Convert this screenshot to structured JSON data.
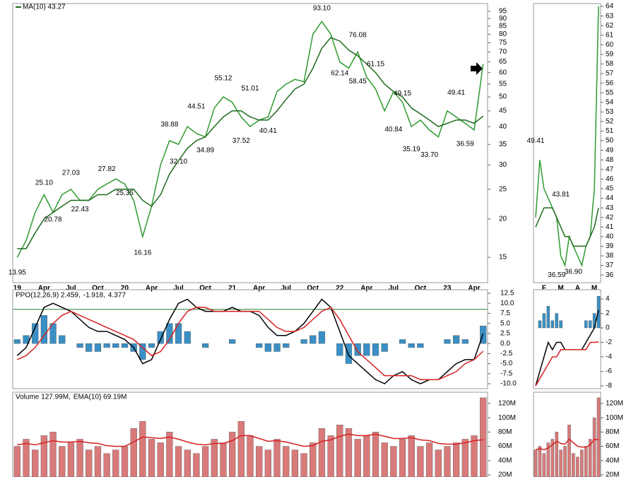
{
  "chart_data": [
    {
      "type": "line",
      "log_scale": true,
      "grid": false,
      "categories": [
        "19",
        null,
        null,
        "Apr",
        null,
        null,
        "Jul",
        null,
        null,
        "Oct",
        null,
        null,
        "20",
        null,
        null,
        "Apr",
        null,
        null,
        "Jul",
        null,
        null,
        "Oct",
        null,
        null,
        "21",
        null,
        null,
        "Apr",
        null,
        null,
        "Jul",
        null,
        null,
        "Oct",
        null,
        null,
        "22",
        null,
        null,
        "Apr",
        null,
        null,
        "Jul",
        null,
        null,
        "Oct",
        null,
        null,
        "23",
        null,
        null,
        "Apr",
        null
      ],
      "series": [
        {
          "color": "#2f9a2f",
          "values": [
            15,
            17,
            21,
            24,
            21,
            24,
            25,
            23,
            23,
            25,
            26,
            27,
            26,
            23,
            17.5,
            22,
            30,
            36,
            35,
            40,
            38,
            37,
            46,
            50,
            48,
            43,
            40,
            42,
            43,
            52,
            55,
            57,
            56,
            80,
            88,
            80,
            65,
            62,
            70,
            58,
            53,
            45,
            52,
            48,
            40,
            42,
            39,
            37,
            45,
            43,
            41,
            39,
            64
          ]
        },
        {
          "name": "MA(10) 43.27",
          "color": "#1e6b1e",
          "values": [
            16,
            16,
            18,
            20,
            21,
            22,
            23,
            23,
            23,
            24,
            24,
            25,
            25,
            25,
            23,
            22,
            24,
            28,
            31,
            34,
            36,
            37,
            40,
            43,
            45,
            45,
            43,
            42,
            42,
            45,
            49,
            53,
            55,
            62,
            72,
            78,
            76,
            71,
            68,
            64,
            60,
            55,
            52,
            50,
            46,
            44,
            42,
            40,
            41,
            42,
            42,
            41,
            43.27
          ]
        }
      ],
      "annotations": [
        {
          "x": 0,
          "value": 13.95
        },
        {
          "x": 3,
          "value": 25.1,
          "label": "25.10"
        },
        {
          "x": 4,
          "value": 20.78
        },
        {
          "x": 6,
          "value": 27.03
        },
        {
          "x": 7,
          "value": 22.43
        },
        {
          "x": 10,
          "value": 27.82
        },
        {
          "x": 12,
          "value": 25.35
        },
        {
          "x": 14,
          "value": 16.16
        },
        {
          "x": 17,
          "value": 38.88
        },
        {
          "x": 18,
          "value": 32.1,
          "label": "32.10"
        },
        {
          "x": 20,
          "value": 44.51
        },
        {
          "x": 21,
          "value": 34.89
        },
        {
          "x": 23,
          "value": 55.12
        },
        {
          "x": 25,
          "value": 37.52
        },
        {
          "x": 26,
          "value": 51.01
        },
        {
          "x": 28,
          "value": 40.41
        },
        {
          "x": 34,
          "value": 93.1,
          "label": "93.10"
        },
        {
          "x": 36,
          "value": 62.14
        },
        {
          "x": 38,
          "value": 76.08
        },
        {
          "x": 38,
          "value": 58.45
        },
        {
          "x": 40,
          "value": 61.15
        },
        {
          "x": 42,
          "value": 40.84
        },
        {
          "x": 43,
          "value": 49.15
        },
        {
          "x": 44,
          "value": 35.19
        },
        {
          "x": 46,
          "value": 33.7,
          "label": "33.70"
        },
        {
          "x": 49,
          "value": 49.41
        },
        {
          "x": 50,
          "value": 36.59
        }
      ],
      "ylim": [
        12.4,
        100.7
      ],
      "yticks": [
        15,
        20,
        25,
        30,
        35,
        40,
        45,
        50,
        55,
        60,
        65,
        70,
        75,
        80,
        85,
        90,
        95
      ]
    },
    {
      "type": "line",
      "grid": false,
      "reference_line": 8.5,
      "reference_color": "#2e7d2e",
      "series": [
        {
          "name": "PPO(12,26,9) 2.459,",
          "color": "#000000",
          "values": [
            -3,
            -1,
            4,
            9,
            10,
            9,
            8,
            6,
            4,
            3,
            3,
            2,
            1,
            -1,
            -5,
            -4,
            1,
            6,
            10,
            11,
            9,
            8,
            8,
            8,
            9,
            8,
            8,
            7,
            4,
            2,
            2,
            3,
            5,
            8,
            11,
            9,
            3,
            -3,
            -5,
            -7,
            -9,
            -10,
            -8,
            -7,
            -9,
            -10,
            -9,
            -9,
            -7,
            -5,
            -4,
            -4,
            2.459
          ]
        },
        {
          "name": "-1.918,",
          "color": "#d62020",
          "values": [
            -4,
            -3,
            -1,
            2,
            5,
            7,
            8,
            7,
            6,
            5,
            4,
            3,
            2,
            1,
            -1,
            -3,
            -2,
            1,
            5,
            8,
            9,
            9,
            8,
            8,
            8,
            8,
            8,
            8,
            6,
            4,
            3,
            3,
            4,
            6,
            8,
            9,
            6,
            2,
            -2,
            -4,
            -6,
            -8,
            -8,
            -8,
            -8,
            -9,
            -9,
            -9,
            -8,
            -7,
            -5,
            -4,
            -1.918
          ]
        },
        {
          "name": "4.377",
          "color": "#3a8fc4",
          "style": "bar",
          "values": [
            1,
            2,
            5,
            7,
            5,
            2,
            0,
            -1,
            -2,
            -2,
            -1,
            -1,
            -1,
            -2,
            -4,
            -1,
            3,
            5,
            5,
            3,
            0,
            -1,
            0,
            0,
            1,
            0,
            0,
            -1,
            -2,
            -2,
            -1,
            0,
            1,
            2,
            3,
            0,
            -3,
            -5,
            -3,
            -3,
            -3,
            -2,
            0,
            1,
            -1,
            -1,
            0,
            0,
            1,
            2,
            1,
            0,
            4.377
          ]
        }
      ],
      "ylim": [
        -11.23,
        13.38
      ],
      "yticks": [
        12.5,
        {
          "value": 10,
          "label": "10.0"
        },
        7.5,
        {
          "value": 5,
          "label": "5.0"
        },
        2.5,
        {
          "value": 0,
          "label": "0.0"
        },
        -2.5,
        {
          "value": -5,
          "label": "-5.0"
        },
        -7.5,
        {
          "value": -10,
          "label": "-10.0"
        }
      ]
    },
    {
      "type": "bar",
      "grid": false,
      "series": [
        {
          "name": "Volume 127.99M,",
          "color": "#d97a7a",
          "style": "bar",
          "values": [
            60000000,
            70000000,
            55000000,
            75000000,
            80000000,
            60000000,
            65000000,
            70000000,
            55000000,
            60000000,
            50000000,
            55000000,
            60000000,
            85000000,
            95000000,
            70000000,
            65000000,
            80000000,
            60000000,
            55000000,
            50000000,
            60000000,
            70000000,
            65000000,
            80000000,
            95000000,
            75000000,
            60000000,
            55000000,
            70000000,
            60000000,
            55000000,
            50000000,
            65000000,
            85000000,
            75000000,
            90000000,
            85000000,
            70000000,
            75000000,
            80000000,
            65000000,
            60000000,
            70000000,
            75000000,
            60000000,
            65000000,
            55000000,
            60000000,
            65000000,
            70000000,
            75000000,
            127990000
          ]
        },
        {
          "name": "EMA(10) 69.19M",
          "color": "#d62020",
          "values": [
            62000000,
            64000000,
            62000000,
            65000000,
            68000000,
            66000000,
            66000000,
            67000000,
            65000000,
            64000000,
            61000000,
            60000000,
            60000000,
            66000000,
            73000000,
            72000000,
            71000000,
            73000000,
            70000000,
            66000000,
            63000000,
            62000000,
            64000000,
            64000000,
            68000000,
            75000000,
            75000000,
            71000000,
            67000000,
            68000000,
            66000000,
            63000000,
            60000000,
            61000000,
            67000000,
            69000000,
            74000000,
            77000000,
            75000000,
            75000000,
            77000000,
            74000000,
            71000000,
            71000000,
            72000000,
            69000000,
            68000000,
            64000000,
            63000000,
            63000000,
            65000000,
            68000000,
            69190000
          ]
        }
      ],
      "ylim": [
        17000000,
        135800000
      ],
      "yticks": [
        {
          "value": 20000000,
          "label": "20M"
        },
        {
          "value": 40000000,
          "label": "40M"
        },
        {
          "value": 60000000,
          "label": "60M"
        },
        {
          "value": 80000000,
          "label": "80M"
        },
        {
          "value": 100000000,
          "label": "100M"
        },
        {
          "value": 120000000,
          "label": "120M"
        }
      ]
    },
    {
      "type": "line",
      "grid": false,
      "categories": [
        null,
        null,
        "F",
        null,
        null,
        null,
        "M",
        null,
        null,
        null,
        "A",
        null,
        null,
        null,
        "M",
        null
      ],
      "series": [
        {
          "color": "#2f9a2f",
          "values": [
            42,
            48,
            45,
            44,
            43,
            42,
            38,
            37,
            40,
            39,
            38,
            37,
            39,
            40,
            45,
            64
          ]
        },
        {
          "color": "#1e6b1e",
          "values": [
            41,
            42,
            43,
            43,
            43,
            42,
            41,
            40,
            40,
            39,
            39,
            39,
            39,
            40,
            41,
            43
          ]
        }
      ],
      "annotations": [
        {
          "x": 0,
          "value": 49.41
        },
        {
          "x": 6,
          "value": 43.81
        },
        {
          "x": 5,
          "value": 36.59
        },
        {
          "x": 9,
          "value": 36.9,
          "label": "36.90"
        }
      ],
      "ylim": [
        35.2,
        64.3
      ],
      "yticks": [
        36,
        37,
        38,
        39,
        40,
        41,
        42,
        43,
        44,
        45,
        46,
        47,
        48,
        49,
        50,
        51,
        52,
        53,
        54,
        55,
        56,
        57,
        58,
        59,
        60,
        61,
        62,
        63,
        64
      ]
    },
    {
      "type": "line",
      "grid": false,
      "series": [
        {
          "color": "#000000",
          "values": [
            -8,
            -6,
            -4,
            -2,
            -3,
            -2,
            -2,
            -3,
            -3,
            -3,
            -3,
            -3,
            -2,
            -1,
            0,
            2.459
          ]
        },
        {
          "color": "#d62020",
          "values": [
            -8,
            -7,
            -6,
            -5,
            -4,
            -4,
            -3,
            -3,
            -3,
            -3,
            -3,
            -3,
            -3,
            -2,
            -2,
            -1.918
          ]
        },
        {
          "color": "#3a8fc4",
          "style": "bar",
          "values": [
            0,
            1,
            2,
            3,
            1,
            2,
            1,
            0,
            0,
            0,
            0,
            0,
            1,
            1,
            2,
            4.377
          ]
        }
      ],
      "ylim": [
        -8.39,
        5.27
      ],
      "yticks": [
        4,
        2,
        0,
        -2,
        -4,
        -6,
        -8
      ]
    },
    {
      "type": "bar",
      "grid": false,
      "series": [
        {
          "color": "#d97a7a",
          "style": "bar",
          "values": [
            55000000,
            60000000,
            50000000,
            65000000,
            70000000,
            80000000,
            55000000,
            60000000,
            90000000,
            50000000,
            45000000,
            55000000,
            60000000,
            70000000,
            100000000,
            127990000
          ]
        },
        {
          "color": "#d62020",
          "values": [
            55000000,
            57000000,
            55000000,
            58000000,
            62000000,
            67000000,
            64000000,
            63000000,
            70000000,
            65000000,
            60000000,
            59000000,
            59000000,
            62000000,
            70000000,
            69190000
          ]
        }
      ],
      "ylim": [
        17000000,
        135800000
      ],
      "yticks": [
        {
          "value": 20000000,
          "label": "20M"
        },
        {
          "value": 40000000,
          "label": "40M"
        },
        {
          "value": 60000000,
          "label": "60M"
        },
        {
          "value": 80000000,
          "label": "80M"
        },
        {
          "value": 100000000,
          "label": "100M"
        },
        {
          "value": 120000000,
          "label": "120M"
        }
      ]
    }
  ]
}
